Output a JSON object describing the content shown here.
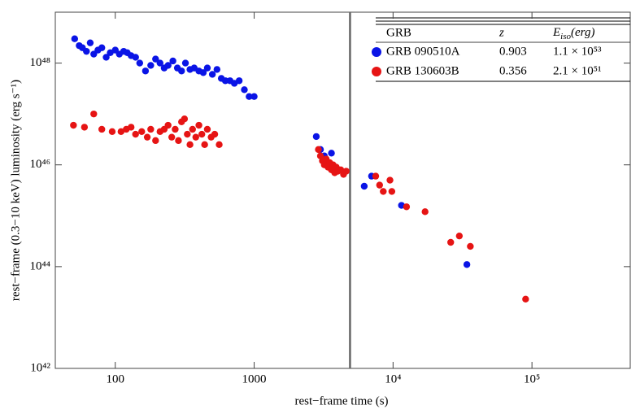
{
  "chart_data": {
    "type": "scatter",
    "x_label": "rest−frame time (s)",
    "y_label": "rest−frame (0.3−10 keV) luminosity (erg s⁻¹)",
    "xscale": "log",
    "yscale": "log",
    "xlim": [
      37,
      510000
    ],
    "ylim": [
      1e+42,
      1e+49
    ],
    "xticks": [
      100,
      1000,
      {
        "value": 10000,
        "label": "10⁴"
      },
      {
        "value": 100000,
        "label": "10⁵"
      }
    ],
    "yticks": [
      {
        "value": 1e+42,
        "label": "10⁴²"
      },
      {
        "value": 1e+44,
        "label": "10⁴⁴"
      },
      {
        "value": 1e+46,
        "label": "10⁴⁶"
      },
      {
        "value": 1e+48,
        "label": "10⁴⁸"
      }
    ],
    "vline": 4900,
    "legend": {
      "header": {
        "name": "GRB",
        "z": "z",
        "e": "E",
        "e_sub": "iso",
        "e_unit": "(erg)"
      },
      "rows": [
        {
          "name": "GRB 090510A",
          "z": "0.903",
          "e": "1.1 × 10⁵³"
        },
        {
          "name": "GRB 130603B",
          "z": "0.356",
          "e": "2.1 × 10⁵¹"
        }
      ]
    },
    "series": [
      {
        "name": "GRB 090510A",
        "color": "#0a14e6",
        "x": [
          51,
          55,
          58,
          62,
          66,
          70,
          75,
          80,
          86,
          92,
          100,
          107,
          115,
          122,
          130,
          140,
          150,
          165,
          180,
          195,
          210,
          225,
          240,
          260,
          280,
          300,
          320,
          345,
          370,
          400,
          430,
          460,
          500,
          540,
          580,
          620,
          670,
          720,
          780,
          850,
          920,
          1000,
          2800,
          3000,
          3200,
          3600,
          6200,
          7000,
          11500,
          34000
        ],
        "values": [
          3e+48,
          2.2e+48,
          2e+48,
          1.7e+48,
          2.5e+48,
          1.5e+48,
          1.8e+48,
          2e+48,
          1.3e+48,
          1.6e+48,
          1.8e+48,
          1.5e+48,
          1.7e+48,
          1.6e+48,
          1.4e+48,
          1.3e+48,
          1e+48,
          7e+47,
          9e+47,
          1.2e+48,
          1e+48,
          8e+47,
          9e+47,
          1.1e+48,
          8e+47,
          7e+47,
          1e+48,
          7.5e+47,
          8e+47,
          7e+47,
          6.5e+47,
          8e+47,
          6e+47,
          7.5e+47,
          5e+47,
          4.5e+47,
          4.5e+47,
          4e+47,
          4.5e+47,
          3e+47,
          2.2e+47,
          2.2e+47,
          3.6e+46,
          2e+46,
          1.5e+46,
          1.7e+46,
          3.8e+45,
          6e+45,
          1.6e+45,
          1.1e+44
        ]
      },
      {
        "name": "GRB 130603B",
        "color": "#e61414",
        "x": [
          50,
          60,
          70,
          80,
          95,
          110,
          120,
          130,
          140,
          155,
          170,
          180,
          195,
          210,
          225,
          240,
          255,
          270,
          285,
          300,
          315,
          330,
          345,
          360,
          380,
          400,
          420,
          440,
          460,
          490,
          520,
          560,
          2900,
          3000,
          3100,
          3200,
          3300,
          3400,
          3500,
          3600,
          3700,
          3800,
          3900,
          4000,
          4200,
          4400,
          4600,
          7500,
          8000,
          8500,
          9500,
          9800,
          12500,
          17000,
          26000,
          30000,
          36000,
          90000
        ],
        "values": [
          6e+46,
          5.5e+46,
          1e+47,
          5e+46,
          4.5e+46,
          4.5e+46,
          5e+46,
          5.5e+46,
          4e+46,
          4.5e+46,
          3.5e+46,
          5e+46,
          3e+46,
          4.5e+46,
          5e+46,
          6e+46,
          3.5e+46,
          5e+46,
          3e+46,
          7e+46,
          8e+46,
          4e+46,
          2.5e+46,
          5e+46,
          3.5e+46,
          6e+46,
          4e+46,
          2.5e+46,
          5e+46,
          3.5e+46,
          4e+46,
          2.5e+46,
          2e+46,
          1.5e+46,
          1.2e+46,
          1e+46,
          1.3e+46,
          9e+45,
          1.1e+46,
          8e+45,
          1e+46,
          7e+45,
          9e+45,
          7.5e+45,
          8e+45,
          6.5e+45,
          7.5e+45,
          6e+45,
          4e+45,
          3e+45,
          5e+45,
          3e+45,
          1.5e+45,
          1.2e+45,
          3e+44,
          4e+44,
          2.5e+44,
          2.3e+43
        ]
      }
    ]
  }
}
